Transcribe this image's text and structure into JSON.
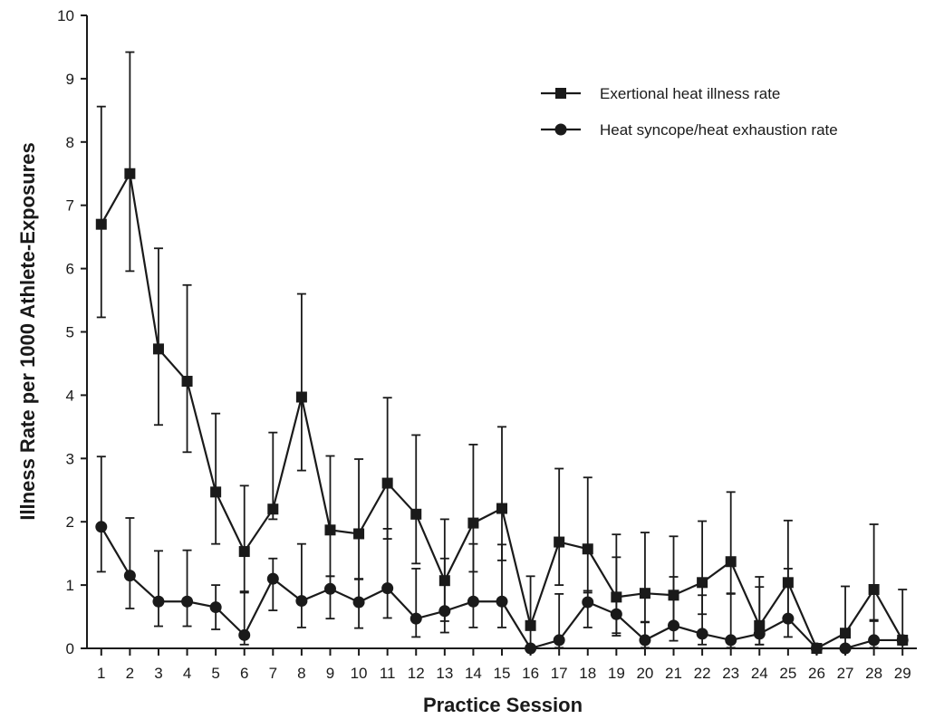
{
  "chart_data": {
    "type": "line",
    "xlabel": "Practice Session",
    "ylabel": "Illness Rate  per 1000 Athlete-Exposures",
    "ylim": [
      0,
      10
    ],
    "yticks": [
      0,
      1,
      2,
      3,
      4,
      5,
      6,
      7,
      8,
      9,
      10
    ],
    "x": [
      1,
      2,
      3,
      4,
      5,
      6,
      7,
      8,
      9,
      10,
      11,
      12,
      13,
      14,
      15,
      16,
      17,
      18,
      19,
      20,
      21,
      22,
      23,
      24,
      25,
      26,
      27,
      28,
      29
    ],
    "grid": false,
    "legend_position": "top-right",
    "series": [
      {
        "name": "Exertional heat illness rate",
        "marker": "square",
        "color": "#1a1a1a",
        "values": [
          6.7,
          7.5,
          4.73,
          4.22,
          2.47,
          1.53,
          2.2,
          3.97,
          1.87,
          1.81,
          2.61,
          2.12,
          1.07,
          1.98,
          2.21,
          0.36,
          1.68,
          1.57,
          0.81,
          0.87,
          0.84,
          1.04,
          1.37,
          0.36,
          1.04,
          0.0,
          0.24,
          0.93,
          0.13
        ],
        "error_upper": [
          8.56,
          9.42,
          6.32,
          5.74,
          3.71,
          2.57,
          3.41,
          5.6,
          3.04,
          2.99,
          3.96,
          3.37,
          2.04,
          3.22,
          3.5,
          1.14,
          2.84,
          2.7,
          1.8,
          1.83,
          1.77,
          2.01,
          2.47,
          1.13,
          2.02,
          0.0,
          0.98,
          1.96,
          0.93
        ],
        "error_lower": [
          5.23,
          5.96,
          3.53,
          3.1,
          1.65,
          0.88,
          2.04,
          2.81,
          1.14,
          1.1,
          1.73,
          1.34,
          0.43,
          1.21,
          1.39,
          0.0,
          1.0,
          0.88,
          0.24,
          0.41,
          0.37,
          0.54,
          0.87,
          0.06,
          0.48,
          0.0,
          0.0,
          0.43,
          0.0
        ]
      },
      {
        "name": "Heat syncope/heat exhaustion rate",
        "marker": "circle",
        "color": "#1a1a1a",
        "values": [
          1.92,
          1.15,
          0.74,
          0.74,
          0.65,
          0.21,
          1.1,
          0.75,
          0.94,
          0.73,
          0.95,
          0.47,
          0.59,
          0.74,
          0.74,
          0.0,
          0.13,
          0.73,
          0.54,
          0.13,
          0.36,
          0.23,
          0.13,
          0.23,
          0.47,
          0.0,
          0.0,
          0.13,
          0.13
        ],
        "error_upper": [
          3.03,
          2.06,
          1.54,
          1.55,
          1.0,
          0.9,
          1.42,
          1.65,
          1.14,
          1.09,
          1.89,
          1.26,
          1.42,
          1.65,
          1.64,
          0.0,
          0.86,
          0.91,
          1.44,
          0.42,
          1.13,
          0.84,
          0.86,
          0.97,
          1.26,
          0.0,
          0.0,
          0.45,
          0.13
        ],
        "error_lower": [
          1.21,
          0.63,
          0.35,
          0.35,
          0.3,
          0.06,
          0.6,
          0.33,
          0.47,
          0.32,
          0.48,
          0.18,
          0.25,
          0.33,
          0.33,
          0.0,
          0.01,
          0.33,
          0.2,
          0.01,
          0.12,
          0.06,
          0.01,
          0.06,
          0.18,
          0.0,
          0.0,
          0.01,
          0.13
        ]
      }
    ]
  }
}
